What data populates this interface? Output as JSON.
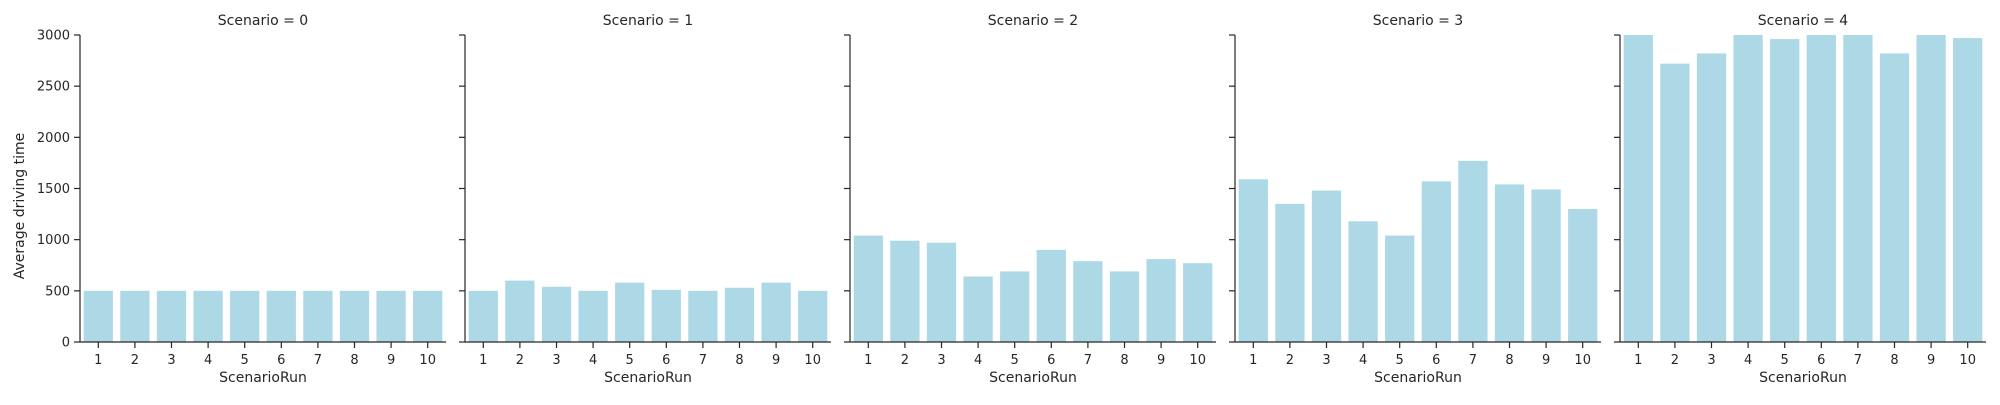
{
  "chart_data": {
    "type": "bar",
    "layout": "facet-grid",
    "facet_variable": "Scenario",
    "x_variable": "ScenarioRun",
    "xlabel": "ScenarioRun",
    "ylabel": "Average driving time",
    "ylim": [
      0,
      3000
    ],
    "yticks": [
      0,
      500,
      1000,
      1500,
      2000,
      2500,
      3000
    ],
    "shared_y": true,
    "grid": false,
    "legend": "none",
    "bar_color": "#add8e6",
    "categories": [
      "1",
      "2",
      "3",
      "4",
      "5",
      "6",
      "7",
      "8",
      "9",
      "10"
    ],
    "panels": [
      {
        "title": "Scenario = 0",
        "values": [
          500,
          500,
          500,
          500,
          500,
          500,
          500,
          500,
          500,
          500
        ]
      },
      {
        "title": "Scenario = 1",
        "values": [
          500,
          600,
          540,
          500,
          580,
          510,
          500,
          530,
          580,
          500
        ]
      },
      {
        "title": "Scenario = 2",
        "values": [
          1040,
          990,
          970,
          640,
          690,
          900,
          790,
          690,
          810,
          770
        ]
      },
      {
        "title": "Scenario = 3",
        "values": [
          1590,
          1350,
          1480,
          1180,
          1040,
          1570,
          1770,
          1540,
          1490,
          1300
        ]
      },
      {
        "title": "Scenario = 4",
        "values": [
          3000,
          2720,
          2820,
          3000,
          2960,
          3000,
          3000,
          2820,
          3000,
          2970
        ]
      }
    ]
  }
}
